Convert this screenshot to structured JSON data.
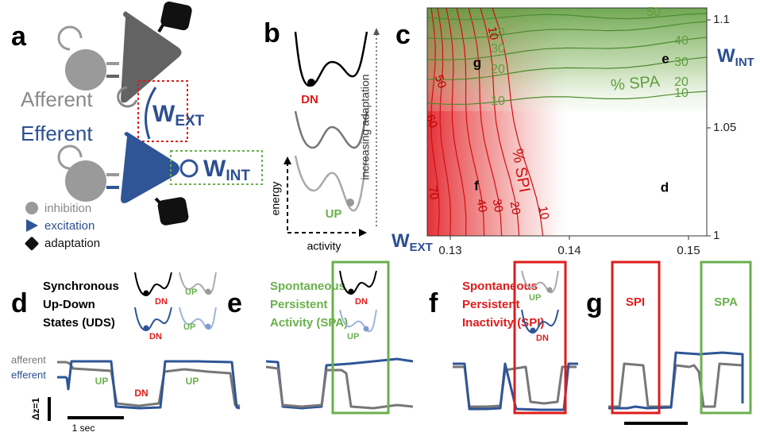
{
  "panel_a": {
    "letter": "a",
    "afferent": "Afferent",
    "efferent": "Efferent",
    "w_ext": {
      "main": "W",
      "sub": "EXT"
    },
    "w_int": {
      "main": "W",
      "sub": "INT"
    },
    "legend": [
      "inhibition",
      "excitation",
      "adaptation"
    ]
  },
  "panel_b": {
    "letter": "b",
    "dn": "DN",
    "up": "UP",
    "y_label": "energy",
    "x_label": "activity",
    "arrow_label": "increasing adaptation"
  },
  "panel_c": {
    "letter": "c",
    "x_ticks": [
      0.13,
      0.14,
      0.15
    ],
    "y_ticks": [
      1,
      1.05,
      1.1
    ],
    "x_label": {
      "main": "W",
      "sub": "EXT"
    },
    "y_label": {
      "main": "W",
      "sub": "INT"
    },
    "spa_label": "% SPA",
    "spi_label": "% SPI",
    "spa_contour_labels": [
      "50",
      "40",
      "30",
      "20",
      "10",
      "40",
      "30",
      "20",
      "10"
    ],
    "spi_contour_labels": [
      "10",
      "50",
      "60",
      "70",
      "40",
      "30",
      "20",
      "10"
    ],
    "points": [
      "g",
      "e",
      "f",
      "d"
    ]
  },
  "panel_d": {
    "letter": "d",
    "title": [
      "Synchronous",
      "Up-Down",
      "States (UDS)"
    ],
    "inset_labels": [
      "DN",
      "UP",
      "DN",
      "UP"
    ],
    "trace_names": [
      "afferent",
      "efferent"
    ],
    "state_labels": [
      "UP",
      "DN",
      "UP"
    ],
    "scale_y": "Δz=1",
    "scale_x": "1 sec"
  },
  "panel_e": {
    "letter": "e",
    "title": [
      "Spontaneous",
      "Persistent",
      "Activity (SPA)"
    ],
    "inset_labels": [
      "DN",
      "UP"
    ]
  },
  "panel_f": {
    "letter": "f",
    "title": [
      "Spontaneous",
      "Persistent",
      "Inactivity (SPI)"
    ],
    "inset_labels": [
      "UP",
      "DN"
    ]
  },
  "panel_g": {
    "letter": "g",
    "box_labels": [
      "SPI",
      "SPA"
    ]
  }
}
